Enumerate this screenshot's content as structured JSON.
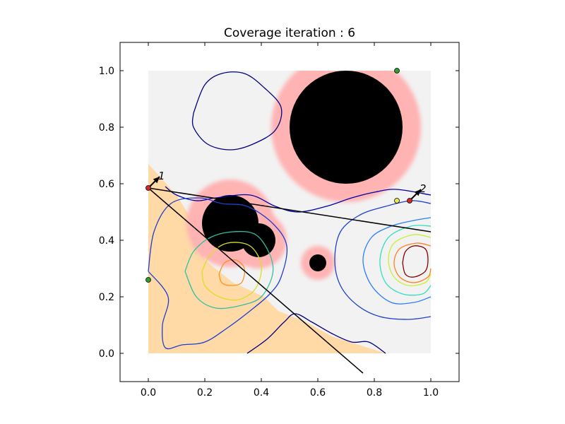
{
  "chart_data": {
    "type": "contour",
    "title": "Coverage iteration : 6",
    "xlabel": "",
    "ylabel": "",
    "xlim": [
      -0.1,
      1.1
    ],
    "ylim": [
      -0.1,
      1.1
    ],
    "xticks": [
      "0.0",
      "0.2",
      "0.4",
      "0.6",
      "0.8",
      "1.0"
    ],
    "yticks": [
      "0.0",
      "0.2",
      "0.4",
      "0.6",
      "0.8",
      "1.0"
    ],
    "grid": false,
    "domain": {
      "x": [
        0,
        1
      ],
      "y": [
        0,
        1
      ]
    },
    "colors": {
      "domain_background": "#f2f2f2",
      "covered_region": "#ffd9a6",
      "obstacle_buffer": "#ffb3b3",
      "obstacle": "#000000",
      "agent_red": "#d62728",
      "agent_green": "#2ca02c",
      "agent_yellow": "#e8e84a",
      "path_line": "#000000"
    },
    "covered_region_polygon": [
      [
        0,
        0
      ],
      [
        0,
        0.67
      ],
      [
        0.1,
        0.56
      ],
      [
        0.18,
        0.43
      ],
      [
        0.2,
        0.33
      ],
      [
        0.3,
        0.25
      ],
      [
        0.41,
        0.2
      ],
      [
        0.46,
        0.15
      ],
      [
        0.56,
        0.11
      ],
      [
        0.65,
        0.06
      ],
      [
        0.84,
        0
      ]
    ],
    "obstacles": [
      {
        "name": "obstacle-large",
        "cx": 0.7,
        "cy": 0.8,
        "r": 0.2,
        "buffer_r": 0.265
      },
      {
        "name": "obstacle-medium-1",
        "cx": 0.29,
        "cy": 0.46,
        "r": 0.1,
        "buffer_r": 0.155
      },
      {
        "name": "obstacle-medium-2",
        "cx": 0.39,
        "cy": 0.4,
        "r": 0.06,
        "buffer_r": 0.1
      },
      {
        "name": "obstacle-small",
        "cx": 0.6,
        "cy": 0.32,
        "r": 0.03,
        "buffer_r": 0.06
      }
    ],
    "contours": [
      {
        "name": "contour-top-left",
        "color": "#000080",
        "points": [
          [
            0.16,
            0.85
          ],
          [
            0.2,
            0.95
          ],
          [
            0.26,
            0.99
          ],
          [
            0.34,
            0.99
          ],
          [
            0.41,
            0.94
          ],
          [
            0.47,
            0.87
          ],
          [
            0.45,
            0.79
          ],
          [
            0.37,
            0.74
          ],
          [
            0.29,
            0.72
          ],
          [
            0.21,
            0.74
          ],
          [
            0.16,
            0.8
          ],
          [
            0.16,
            0.85
          ]
        ]
      },
      {
        "name": "contour-left-1",
        "color": "#0000a8",
        "points": [
          [
            0.06,
            0.59
          ],
          [
            0.1,
            0.56
          ],
          [
            0.17,
            0.54
          ],
          [
            0.24,
            0.55
          ],
          [
            0.36,
            0.56
          ],
          [
            0.45,
            0.52
          ],
          [
            0.53,
            0.5
          ],
          [
            0.63,
            0.52
          ],
          [
            0.72,
            0.55
          ],
          [
            0.8,
            0.57
          ],
          [
            0.88,
            0.58
          ],
          [
            1.0,
            0.56
          ]
        ]
      },
      {
        "name": "contour-left-2",
        "color": "#1c3fd0",
        "points": [
          [
            0.0,
            0.29
          ],
          [
            0.02,
            0.43
          ],
          [
            0.08,
            0.53
          ],
          [
            0.18,
            0.55
          ],
          [
            0.26,
            0.53
          ],
          [
            0.35,
            0.52
          ],
          [
            0.44,
            0.46
          ],
          [
            0.49,
            0.38
          ],
          [
            0.47,
            0.27
          ],
          [
            0.43,
            0.21
          ],
          [
            0.36,
            0.15
          ],
          [
            0.28,
            0.09
          ],
          [
            0.2,
            0.04
          ],
          [
            0.12,
            0.03
          ],
          [
            0.06,
            0.02
          ],
          [
            0.05,
            0.1
          ],
          [
            0.07,
            0.2
          ],
          [
            0.0,
            0.29
          ]
        ]
      },
      {
        "name": "contour-left-3",
        "color": "#30c0a0",
        "points": [
          [
            0.13,
            0.29
          ],
          [
            0.16,
            0.36
          ],
          [
            0.22,
            0.41
          ],
          [
            0.3,
            0.43
          ],
          [
            0.38,
            0.42
          ],
          [
            0.43,
            0.35
          ],
          [
            0.44,
            0.28
          ],
          [
            0.4,
            0.2
          ],
          [
            0.33,
            0.17
          ],
          [
            0.24,
            0.16
          ],
          [
            0.17,
            0.2
          ],
          [
            0.13,
            0.29
          ]
        ]
      },
      {
        "name": "contour-left-4",
        "color": "#d8e020",
        "points": [
          [
            0.19,
            0.29
          ],
          [
            0.22,
            0.35
          ],
          [
            0.28,
            0.39
          ],
          [
            0.36,
            0.38
          ],
          [
            0.4,
            0.31
          ],
          [
            0.38,
            0.23
          ],
          [
            0.32,
            0.19
          ],
          [
            0.25,
            0.2
          ],
          [
            0.2,
            0.24
          ],
          [
            0.19,
            0.29
          ]
        ]
      },
      {
        "name": "contour-left-5",
        "color": "#ff9020",
        "points": [
          [
            0.25,
            0.28
          ],
          [
            0.27,
            0.32
          ],
          [
            0.31,
            0.33
          ],
          [
            0.34,
            0.3
          ],
          [
            0.33,
            0.25
          ],
          [
            0.29,
            0.24
          ],
          [
            0.26,
            0.25
          ],
          [
            0.25,
            0.28
          ]
        ]
      },
      {
        "name": "contour-bottom",
        "color": "#000080",
        "points": [
          [
            0.35,
            0.0
          ],
          [
            0.42,
            0.05
          ],
          [
            0.48,
            0.11
          ],
          [
            0.52,
            0.14
          ],
          [
            0.58,
            0.11
          ],
          [
            0.65,
            0.07
          ],
          [
            0.72,
            0.04
          ],
          [
            0.78,
            0.04
          ],
          [
            0.84,
            0.0
          ]
        ]
      },
      {
        "name": "contour-right-1",
        "color": "#1c3fd0",
        "points": [
          [
            1.0,
            0.53
          ],
          [
            0.93,
            0.54
          ],
          [
            0.84,
            0.52
          ],
          [
            0.75,
            0.49
          ],
          [
            0.68,
            0.43
          ],
          [
            0.66,
            0.33
          ],
          [
            0.68,
            0.24
          ],
          [
            0.74,
            0.17
          ],
          [
            0.82,
            0.13
          ],
          [
            0.92,
            0.12
          ],
          [
            1.0,
            0.13
          ]
        ]
      },
      {
        "name": "contour-right-2",
        "color": "#2a7fff",
        "points": [
          [
            1.0,
            0.48
          ],
          [
            0.94,
            0.47
          ],
          [
            0.86,
            0.45
          ],
          [
            0.79,
            0.41
          ],
          [
            0.76,
            0.33
          ],
          [
            0.79,
            0.24
          ],
          [
            0.86,
            0.18
          ],
          [
            0.94,
            0.18
          ],
          [
            1.0,
            0.2
          ]
        ]
      },
      {
        "name": "contour-right-3",
        "color": "#30e0c0",
        "points": [
          [
            1.0,
            0.45
          ],
          [
            0.93,
            0.45
          ],
          [
            0.85,
            0.41
          ],
          [
            0.82,
            0.33
          ],
          [
            0.84,
            0.25
          ],
          [
            0.9,
            0.21
          ],
          [
            0.97,
            0.21
          ],
          [
            1.0,
            0.24
          ]
        ]
      },
      {
        "name": "contour-right-4",
        "color": "#c8f030",
        "points": [
          [
            1.0,
            0.41
          ],
          [
            0.94,
            0.42
          ],
          [
            0.87,
            0.39
          ],
          [
            0.85,
            0.33
          ],
          [
            0.87,
            0.27
          ],
          [
            0.92,
            0.24
          ],
          [
            0.98,
            0.25
          ],
          [
            1.0,
            0.28
          ]
        ]
      },
      {
        "name": "contour-right-5",
        "color": "#ff8020",
        "points": [
          [
            1.0,
            0.38
          ],
          [
            0.95,
            0.39
          ],
          [
            0.89,
            0.37
          ],
          [
            0.87,
            0.32
          ],
          [
            0.89,
            0.27
          ],
          [
            0.94,
            0.25
          ],
          [
            0.99,
            0.27
          ],
          [
            1.0,
            0.3
          ]
        ]
      },
      {
        "name": "contour-right-6",
        "color": "#800000",
        "points": [
          [
            0.9,
            0.32
          ],
          [
            0.91,
            0.36
          ],
          [
            0.94,
            0.38
          ],
          [
            0.98,
            0.37
          ],
          [
            0.99,
            0.33
          ],
          [
            0.98,
            0.29
          ],
          [
            0.94,
            0.27
          ],
          [
            0.91,
            0.28
          ],
          [
            0.9,
            0.32
          ]
        ]
      }
    ],
    "paths": [
      {
        "name": "path-to-right",
        "points": [
          [
            0.0,
            0.585
          ],
          [
            1.0,
            0.43
          ]
        ]
      },
      {
        "name": "path-diagonal",
        "points": [
          [
            0.0,
            0.585
          ],
          [
            0.76,
            -0.07
          ]
        ]
      }
    ],
    "agents": [
      {
        "name": "agent-1",
        "label": "1",
        "x": 0.0,
        "y": 0.585,
        "color": "#d62728",
        "heading_dx": 0.04,
        "heading_dy": 0.04
      },
      {
        "name": "agent-2",
        "label": "2",
        "x": 0.925,
        "y": 0.54,
        "color": "#d62728",
        "heading_dx": 0.04,
        "heading_dy": 0.04
      }
    ],
    "markers": [
      {
        "name": "marker-top",
        "x": 0.88,
        "y": 1.0,
        "color": "#2ca02c"
      },
      {
        "name": "marker-left",
        "x": 0.0,
        "y": 0.26,
        "color": "#2ca02c"
      },
      {
        "name": "marker-right",
        "x": 0.88,
        "y": 0.54,
        "color": "#e8e84a"
      }
    ]
  }
}
